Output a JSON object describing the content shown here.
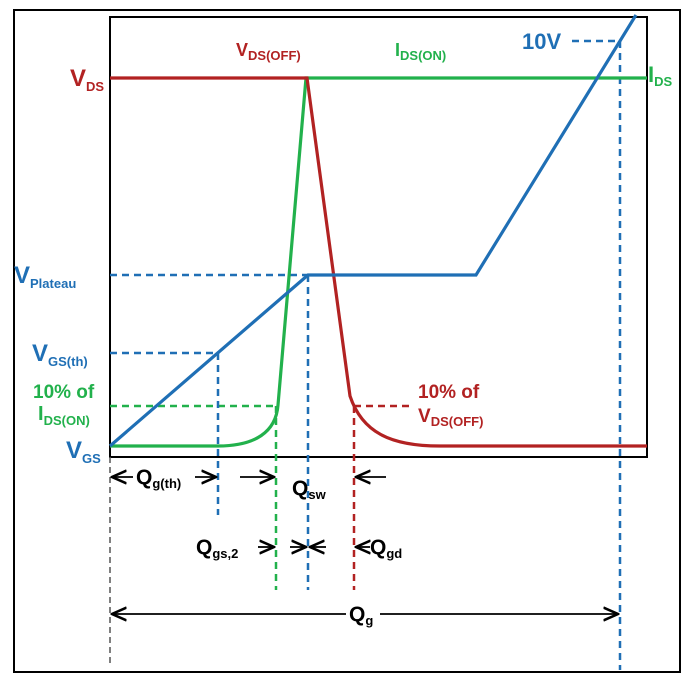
{
  "colors": {
    "vds": "#b22222",
    "ids": "#22b14c",
    "vgs": "#1f6fb5",
    "black": "#000000"
  },
  "labels": {
    "vds_left": {
      "main": "V",
      "sub": "DS"
    },
    "vds_off_top": {
      "main": "V",
      "sub": "DS(OFF)"
    },
    "ids_on_top": {
      "main": "I",
      "sub": "DS(ON)"
    },
    "ten_v": "10V",
    "ids_right": {
      "main": "I",
      "sub": "DS"
    },
    "vplateau": {
      "main": "V",
      "sub": "Plateau"
    },
    "vgs_th": {
      "main": "V",
      "sub": "GS(th)"
    },
    "ten_pct_ids_line1": "10% of",
    "ten_pct_ids_line2": {
      "main": "I",
      "sub": "DS(ON)"
    },
    "vgs_left": {
      "main": "V",
      "sub": "GS"
    },
    "ten_pct_vds_line1": "10% of",
    "ten_pct_vds_line2": {
      "main": "V",
      "sub": "DS(OFF)"
    },
    "qgth": {
      "main": "Q",
      "sub": "g(th)"
    },
    "qsw": {
      "main": "Q",
      "sub": "sw"
    },
    "qgs2": {
      "main": "Q",
      "sub": "gs,2"
    },
    "qgd": {
      "main": "Q",
      "sub": "gd"
    },
    "qg": {
      "main": "Q",
      "sub": "g"
    }
  }
}
